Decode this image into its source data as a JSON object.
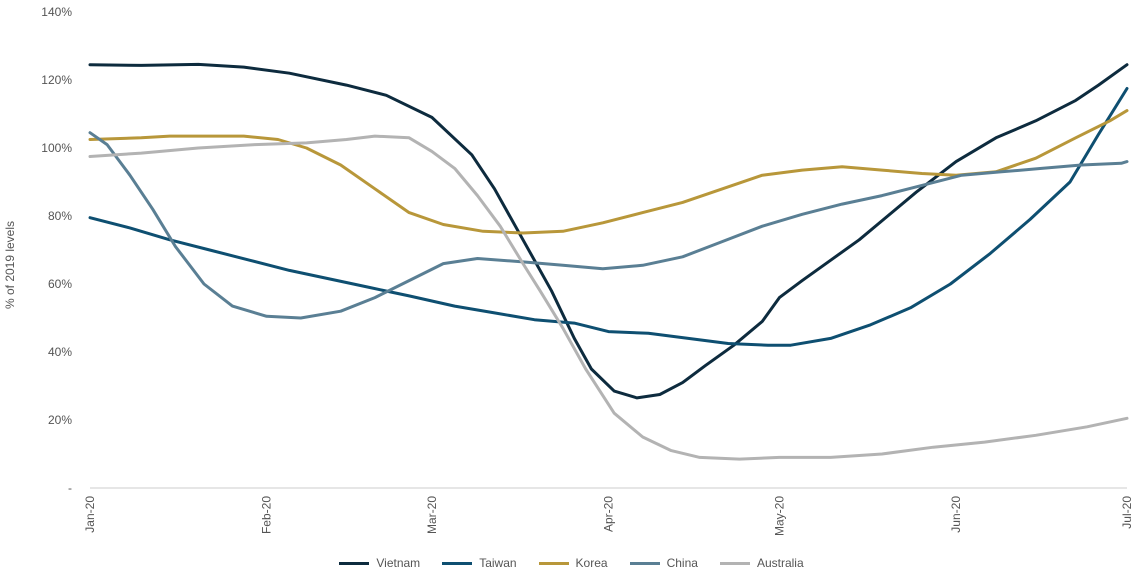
{
  "chart_data": {
    "type": "line",
    "title": "",
    "xlabel": "",
    "ylabel": "% of 2019 levels",
    "ylim": [
      0,
      140
    ],
    "xlim": [
      "2020-01-01",
      "2020-07-01"
    ],
    "y_ticks": [
      {
        "value": 0,
        "label": "-"
      },
      {
        "value": 20,
        "label": "20%"
      },
      {
        "value": 40,
        "label": "40%"
      },
      {
        "value": 60,
        "label": "60%"
      },
      {
        "value": 80,
        "label": "80%"
      },
      {
        "value": 100,
        "label": "100%"
      },
      {
        "value": 120,
        "label": "120%"
      },
      {
        "value": 140,
        "label": "140%"
      }
    ],
    "x_ticks": [
      {
        "date": "2020-01-01",
        "label": "Jan-20"
      },
      {
        "date": "2020-02-01",
        "label": "Feb-20"
      },
      {
        "date": "2020-03-01",
        "label": "Mar-20"
      },
      {
        "date": "2020-04-01",
        "label": "Apr-20"
      },
      {
        "date": "2020-05-01",
        "label": "May-20"
      },
      {
        "date": "2020-06-01",
        "label": "Jun-20"
      },
      {
        "date": "2020-07-01",
        "label": "Jul-20"
      }
    ],
    "grid": false,
    "legend": "bottom",
    "series": [
      {
        "name": "Vietnam",
        "color": "#0d2b3e",
        "points": [
          [
            "2020-01-01",
            124.5
          ],
          [
            "2020-01-10",
            124.3
          ],
          [
            "2020-01-20",
            124.6
          ],
          [
            "2020-01-28",
            123.8
          ],
          [
            "2020-02-05",
            122
          ],
          [
            "2020-02-15",
            118.5
          ],
          [
            "2020-02-22",
            115.5
          ],
          [
            "2020-03-01",
            109
          ],
          [
            "2020-03-08",
            98
          ],
          [
            "2020-03-12",
            88
          ],
          [
            "2020-03-17",
            73
          ],
          [
            "2020-03-22",
            58
          ],
          [
            "2020-03-26",
            44
          ],
          [
            "2020-03-29",
            35
          ],
          [
            "2020-04-02",
            28.5
          ],
          [
            "2020-04-06",
            26.5
          ],
          [
            "2020-04-10",
            27.5
          ],
          [
            "2020-04-14",
            31
          ],
          [
            "2020-04-18",
            36
          ],
          [
            "2020-04-23",
            42
          ],
          [
            "2020-04-28",
            49
          ],
          [
            "2020-05-01",
            56
          ],
          [
            "2020-05-05",
            61
          ],
          [
            "2020-05-10",
            67
          ],
          [
            "2020-05-15",
            73
          ],
          [
            "2020-05-20",
            80
          ],
          [
            "2020-05-25",
            87
          ],
          [
            "2020-06-01",
            96
          ],
          [
            "2020-06-08",
            103
          ],
          [
            "2020-06-15",
            108
          ],
          [
            "2020-06-22",
            114
          ],
          [
            "2020-06-26",
            118.5
          ],
          [
            "2020-07-01",
            124.5
          ]
        ]
      },
      {
        "name": "Taiwan",
        "color": "#0e4f71",
        "points": [
          [
            "2020-01-01",
            79.5
          ],
          [
            "2020-01-08",
            76.5
          ],
          [
            "2020-01-15",
            73
          ],
          [
            "2020-01-22",
            70
          ],
          [
            "2020-01-29",
            67
          ],
          [
            "2020-02-05",
            64
          ],
          [
            "2020-02-12",
            61.5
          ],
          [
            "2020-02-19",
            59
          ],
          [
            "2020-02-26",
            56.5
          ],
          [
            "2020-03-05",
            53.5
          ],
          [
            "2020-03-12",
            51.5
          ],
          [
            "2020-03-19",
            49.5
          ],
          [
            "2020-03-26",
            48.5
          ],
          [
            "2020-04-01",
            46
          ],
          [
            "2020-04-08",
            45.5
          ],
          [
            "2020-04-15",
            44
          ],
          [
            "2020-04-22",
            42.5
          ],
          [
            "2020-04-29",
            42
          ],
          [
            "2020-05-03",
            42
          ],
          [
            "2020-05-10",
            44
          ],
          [
            "2020-05-17",
            48
          ],
          [
            "2020-05-24",
            53
          ],
          [
            "2020-05-31",
            60
          ],
          [
            "2020-06-07",
            69
          ],
          [
            "2020-06-14",
            79
          ],
          [
            "2020-06-21",
            90
          ],
          [
            "2020-06-26",
            104
          ],
          [
            "2020-07-01",
            117.5
          ]
        ]
      },
      {
        "name": "Korea",
        "color": "#b8973a",
        "points": [
          [
            "2020-01-01",
            102.5
          ],
          [
            "2020-01-10",
            103
          ],
          [
            "2020-01-15",
            103.5
          ],
          [
            "2020-01-28",
            103.5
          ],
          [
            "2020-02-03",
            102.5
          ],
          [
            "2020-02-08",
            100
          ],
          [
            "2020-02-14",
            95
          ],
          [
            "2020-02-20",
            88
          ],
          [
            "2020-02-26",
            81
          ],
          [
            "2020-03-03",
            77.5
          ],
          [
            "2020-03-10",
            75.5
          ],
          [
            "2020-03-17",
            75
          ],
          [
            "2020-03-24",
            75.5
          ],
          [
            "2020-03-31",
            78
          ],
          [
            "2020-04-07",
            81
          ],
          [
            "2020-04-14",
            84
          ],
          [
            "2020-04-21",
            88
          ],
          [
            "2020-04-28",
            92
          ],
          [
            "2020-05-05",
            93.5
          ],
          [
            "2020-05-12",
            94.5
          ],
          [
            "2020-05-19",
            93.5
          ],
          [
            "2020-05-26",
            92.5
          ],
          [
            "2020-06-01",
            92
          ],
          [
            "2020-06-08",
            93
          ],
          [
            "2020-06-15",
            97
          ],
          [
            "2020-06-22",
            103
          ],
          [
            "2020-06-28",
            108
          ],
          [
            "2020-07-01",
            111
          ]
        ]
      },
      {
        "name": "China",
        "color": "#5a7f94",
        "points": [
          [
            "2020-01-01",
            104.5
          ],
          [
            "2020-01-04",
            101
          ],
          [
            "2020-01-08",
            92
          ],
          [
            "2020-01-12",
            82
          ],
          [
            "2020-01-16",
            71
          ],
          [
            "2020-01-21",
            60
          ],
          [
            "2020-01-26",
            53.5
          ],
          [
            "2020-02-01",
            50.5
          ],
          [
            "2020-02-07",
            50
          ],
          [
            "2020-02-14",
            52
          ],
          [
            "2020-02-20",
            56
          ],
          [
            "2020-02-26",
            61
          ],
          [
            "2020-03-03",
            66
          ],
          [
            "2020-03-09",
            67.5
          ],
          [
            "2020-03-17",
            66.5
          ],
          [
            "2020-03-24",
            65.5
          ],
          [
            "2020-03-31",
            64.5
          ],
          [
            "2020-04-07",
            65.5
          ],
          [
            "2020-04-14",
            68
          ],
          [
            "2020-04-21",
            72.5
          ],
          [
            "2020-04-28",
            77
          ],
          [
            "2020-05-05",
            80.5
          ],
          [
            "2020-05-12",
            83.5
          ],
          [
            "2020-05-19",
            86
          ],
          [
            "2020-05-26",
            89
          ],
          [
            "2020-06-02",
            92
          ],
          [
            "2020-06-09",
            93
          ],
          [
            "2020-06-16",
            94
          ],
          [
            "2020-06-23",
            95
          ],
          [
            "2020-06-30",
            95.5
          ],
          [
            "2020-07-01",
            96
          ]
        ]
      },
      {
        "name": "Australia",
        "color": "#b3b3b3",
        "points": [
          [
            "2020-01-01",
            97.5
          ],
          [
            "2020-01-10",
            98.5
          ],
          [
            "2020-01-20",
            100
          ],
          [
            "2020-01-30",
            101
          ],
          [
            "2020-02-08",
            101.5
          ],
          [
            "2020-02-15",
            102.5
          ],
          [
            "2020-02-20",
            103.5
          ],
          [
            "2020-02-26",
            103
          ],
          [
            "2020-03-01",
            99
          ],
          [
            "2020-03-05",
            94
          ],
          [
            "2020-03-09",
            86
          ],
          [
            "2020-03-13",
            77
          ],
          [
            "2020-03-17",
            66
          ],
          [
            "2020-03-20",
            58
          ],
          [
            "2020-03-24",
            47
          ],
          [
            "2020-03-28",
            35
          ],
          [
            "2020-04-02",
            22
          ],
          [
            "2020-04-07",
            15
          ],
          [
            "2020-04-12",
            11
          ],
          [
            "2020-04-17",
            9
          ],
          [
            "2020-04-24",
            8.5
          ],
          [
            "2020-05-01",
            9
          ],
          [
            "2020-05-10",
            9
          ],
          [
            "2020-05-19",
            10
          ],
          [
            "2020-05-28",
            12
          ],
          [
            "2020-06-06",
            13.5
          ],
          [
            "2020-06-15",
            15.5
          ],
          [
            "2020-06-24",
            18
          ],
          [
            "2020-07-01",
            20.5
          ]
        ]
      }
    ]
  }
}
